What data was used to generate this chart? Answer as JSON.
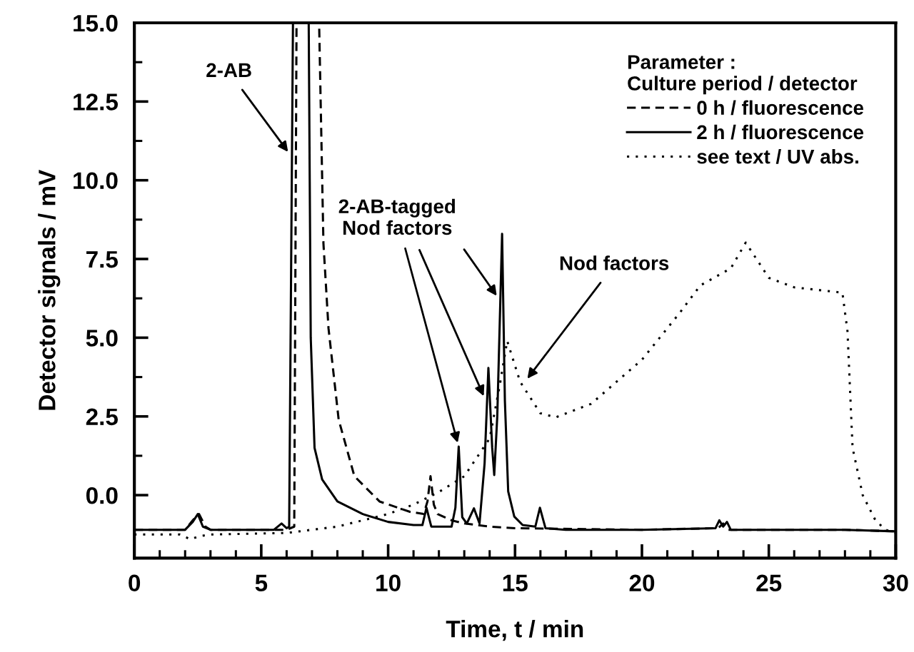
{
  "chart_data": {
    "type": "line",
    "xlabel": "Time, t / min",
    "ylabel": "Detector signals / mV",
    "legend_title": "Parameter :\nCulture period / detector",
    "legend": "top right",
    "grid": false,
    "marker": "none",
    "xlim": [
      0,
      30
    ],
    "xticks": [
      0,
      5,
      10,
      15,
      20,
      25,
      30
    ],
    "ylim": [
      -2.0,
      15.0
    ],
    "yticks": [
      {
        "value": 0,
        "label": "0.0"
      },
      {
        "value": 2.5,
        "label": "2.5"
      },
      {
        "value": 5,
        "label": "5.0"
      },
      {
        "value": 7.5,
        "label": "7.5"
      },
      {
        "value": 10,
        "label": "10.0"
      },
      {
        "value": 12.5,
        "label": "12.5"
      },
      {
        "value": 15,
        "label": "15.0"
      }
    ],
    "series": [
      {
        "name": "0 h / fluorescence",
        "color": "#000000",
        "line_style": "dashed",
        "x": [
          0,
          2.0,
          2.3,
          2.55,
          2.8,
          3.0,
          6.0,
          6.3,
          6.39,
          7.28,
          7.45,
          7.65,
          8.05,
          8.67,
          9.66,
          10.86,
          11.4,
          11.55,
          11.67,
          11.8,
          11.95,
          12.5,
          13.0,
          14.0,
          15.0,
          20.0,
          23.0,
          23.2,
          23.4,
          28.0,
          30.0
        ],
        "values": [
          -1.1,
          -1.1,
          -0.8,
          -0.6,
          -1.0,
          -1.1,
          -1.1,
          -1.0,
          15.0,
          15.0,
          8.0,
          5.3,
          2.4,
          0.6,
          -0.2,
          -0.53,
          -0.6,
          -0.2,
          0.6,
          -0.3,
          -0.6,
          -0.8,
          -0.9,
          -1.0,
          -1.05,
          -1.1,
          -1.05,
          -0.9,
          -1.1,
          -1.1,
          -1.15
        ]
      },
      {
        "name": "2 h / fluorescence",
        "color": "#000000",
        "line_style": "solid",
        "x": [
          0,
          2.0,
          2.3,
          2.5,
          2.7,
          3.0,
          5.5,
          5.8,
          6.0,
          6.1,
          6.25,
          6.87,
          6.95,
          7.1,
          7.4,
          8.0,
          9.0,
          10.0,
          11.0,
          11.35,
          11.51,
          11.7,
          12.5,
          12.65,
          12.78,
          12.92,
          13.1,
          13.38,
          13.6,
          13.8,
          13.95,
          14.1,
          14.18,
          14.3,
          14.49,
          14.6,
          14.73,
          14.97,
          15.3,
          15.8,
          15.98,
          16.2,
          17.0,
          20.0,
          22.9,
          23.05,
          23.2,
          23.35,
          23.5,
          28.0,
          30.0
        ],
        "values": [
          -1.1,
          -1.1,
          -0.85,
          -0.6,
          -1.0,
          -1.1,
          -1.1,
          -0.9,
          -1.05,
          -1.0,
          15.0,
          15.0,
          5.0,
          1.5,
          0.5,
          -0.2,
          -0.6,
          -0.85,
          -0.95,
          -0.95,
          -0.4,
          -1.0,
          -1.0,
          -0.4,
          1.54,
          -0.7,
          -0.9,
          -0.42,
          -0.9,
          1.0,
          4.04,
          1.5,
          0.64,
          2.5,
          8.3,
          3.0,
          0.12,
          -0.68,
          -0.95,
          -1.0,
          -0.4,
          -1.05,
          -1.1,
          -1.1,
          -1.05,
          -0.8,
          -1.0,
          -0.85,
          -1.1,
          -1.1,
          -1.15
        ]
      },
      {
        "name": "see text / UV abs.",
        "color": "#000000",
        "line_style": "dotted",
        "x": [
          0,
          1.8,
          2.2,
          2.6,
          3.0,
          6.0,
          8.0,
          10.0,
          11.0,
          12.0,
          13.0,
          14.0,
          14.4,
          14.69,
          15.2,
          16.0,
          16.6,
          18.0,
          20.0,
          21.5,
          22.3,
          23.5,
          24.09,
          25.0,
          26.0,
          27.9,
          28.1,
          28.3,
          28.7,
          29.2,
          29.6,
          30.0
        ],
        "values": [
          -1.25,
          -1.25,
          -1.4,
          -1.3,
          -1.25,
          -1.2,
          -1.0,
          -0.6,
          -0.3,
          0.1,
          0.6,
          1.8,
          3.5,
          4.9,
          3.6,
          2.6,
          2.47,
          2.9,
          4.3,
          5.8,
          6.66,
          7.2,
          8.02,
          6.9,
          6.6,
          6.43,
          5.2,
          1.5,
          0.0,
          -0.8,
          -1.1,
          -1.2
        ]
      }
    ],
    "annotations": [
      {
        "text": "2-AB",
        "x": 6.15,
        "y": 10.8
      },
      {
        "text": "2-AB-tagged\nNod factors",
        "x": 12.78,
        "y": 1.54
      },
      {
        "text": "Nod factors",
        "x": 15.39,
        "y": 3.6
      }
    ]
  }
}
